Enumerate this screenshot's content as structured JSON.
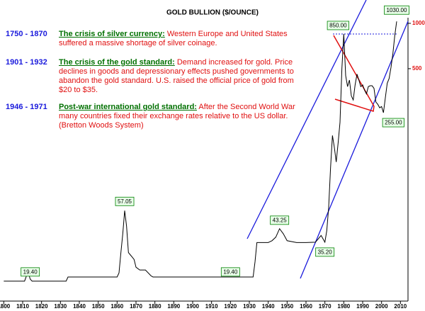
{
  "chart_data": {
    "type": "line",
    "title": "GOLD BULLION ($/OUNCE)",
    "annotations": [
      {
        "period": "1750 - 1870",
        "heading": "The crisis of silver currency:",
        "text": "Western Europe and United States suffered a massive shortage of silver coinage."
      },
      {
        "period": "1901 - 1932",
        "heading": "The crisis of the gold standard:",
        "text": "Demand increased for gold. Price declines in goods and depressionary effects pushed governments to abandon the gold standard. U.S. raised the official price of gold from $20 to $35."
      },
      {
        "period": "1946 - 1971",
        "heading": "Post-war international gold standard:",
        "text": "After the Second World War many countries fixed their exchange rates relative to the US dollar. (Bretton Woods System)"
      }
    ],
    "x": [
      1800,
      1811,
      1812,
      1813,
      1814,
      1815,
      1833,
      1834,
      1860,
      1861,
      1862,
      1863,
      1864,
      1865,
      1866,
      1867,
      1868,
      1869,
      1870,
      1872,
      1875,
      1878,
      1879,
      1932,
      1933,
      1934,
      1940,
      1942,
      1944,
      1946,
      1948,
      1950,
      1955,
      1960,
      1965,
      1968,
      1970,
      1971,
      1972,
      1973,
      1974,
      1975,
      1976,
      1977,
      1978,
      1979,
      1980,
      1981,
      1982,
      1983,
      1984,
      1985,
      1986,
      1987,
      1988,
      1989,
      1990,
      1991,
      1992,
      1993,
      1994,
      1995,
      1996,
      1997,
      1998,
      1999,
      2000,
      2001,
      2002,
      2003,
      2004,
      2005,
      2006,
      2007,
      2008
    ],
    "values": [
      19.4,
      19.4,
      21,
      22,
      20,
      19.4,
      19.4,
      20.67,
      20.67,
      22,
      30,
      40,
      57.05,
      45,
      30,
      29,
      28,
      27,
      24,
      23,
      23,
      21,
      20.67,
      20.67,
      26,
      35,
      35,
      36,
      38,
      43.25,
      40,
      36,
      35,
      35,
      35.2,
      39,
      35.2,
      42,
      60,
      110,
      180,
      150,
      120,
      160,
      220,
      500,
      850,
      450,
      380,
      420,
      330,
      310,
      390,
      460,
      420,
      380,
      390,
      360,
      340,
      380,
      385,
      385,
      370,
      300,
      290,
      275,
      280,
      255,
      320,
      400,
      430,
      510,
      630,
      830,
      1030
    ],
    "color": "#000000",
    "callouts": [
      {
        "x": 1814,
        "value": {
          "value": 19.4,
          "label": "19.40"
        }
      },
      {
        "x": 1864,
        "value": {
          "value": 57.05,
          "label": "57.05"
        }
      },
      {
        "x": 1920,
        "value": {
          "value": 19.4,
          "label": "19.40"
        }
      },
      {
        "x": 1946,
        "value": {
          "value": 43.25,
          "label": "43.25"
        }
      },
      {
        "x": 1970,
        "value": {
          "value": 35.2,
          "label": "35.20"
        }
      },
      {
        "x": 1980,
        "value": {
          "value": 850,
          "label": "850.00"
        }
      },
      {
        "x": 2001,
        "value": {
          "value": 255,
          "label": "255.00"
        }
      },
      {
        "x": 2008,
        "value": {
          "value": 1030,
          "label": "1030.00"
        }
      }
    ],
    "xlim": [
      1798,
      2014
    ],
    "xticks": [
      1800,
      1810,
      1820,
      1830,
      1840,
      1850,
      1860,
      1870,
      1880,
      1890,
      1900,
      1910,
      1920,
      1930,
      1940,
      1950,
      1960,
      1970,
      1980,
      1990,
      2000,
      2010
    ],
    "ylim": [
      14.3,
      1090
    ],
    "yticks": [
      500,
      1000
    ],
    "log_scale": true
  }
}
